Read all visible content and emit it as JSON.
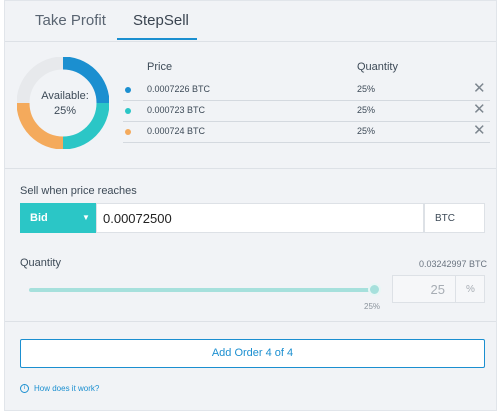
{
  "tabs": [
    {
      "label": "Take Profit",
      "active": false
    },
    {
      "label": "StepSell",
      "active": true
    }
  ],
  "donut": {
    "label_line1": "Available:",
    "label_line2": "25%",
    "segments": [
      {
        "value": 25,
        "color": "#1b8fd0"
      },
      {
        "value": 25,
        "color": "#2bc6c6"
      },
      {
        "value": 25,
        "color": "#f4aa5c"
      },
      {
        "value": 25,
        "color": "#e7e9ec"
      }
    ]
  },
  "orders": {
    "price_header": "Price",
    "quantity_header": "Quantity",
    "rows": [
      {
        "price": "0.0007226 BTC",
        "quantity": "25%",
        "color": "#1b8fd0",
        "remove": "✕"
      },
      {
        "price": "0.000723 BTC",
        "quantity": "25%",
        "color": "#2bc6c6",
        "remove": "✕"
      },
      {
        "price": "0.000724 BTC",
        "quantity": "25%",
        "color": "#f4aa5c",
        "remove": "✕"
      }
    ]
  },
  "sell": {
    "label": "Sell when price reaches",
    "price_type": "Bid",
    "price_value": "0.00072500",
    "unit": "BTC"
  },
  "quantity": {
    "label": "Quantity",
    "available": "0.03242997 BTC",
    "slider_label": "25%",
    "slider_fraction": 0.25,
    "input_value": "25",
    "unit": "%"
  },
  "add_order_label": "Add Order 4 of 4",
  "help_text": "How does it work?"
}
